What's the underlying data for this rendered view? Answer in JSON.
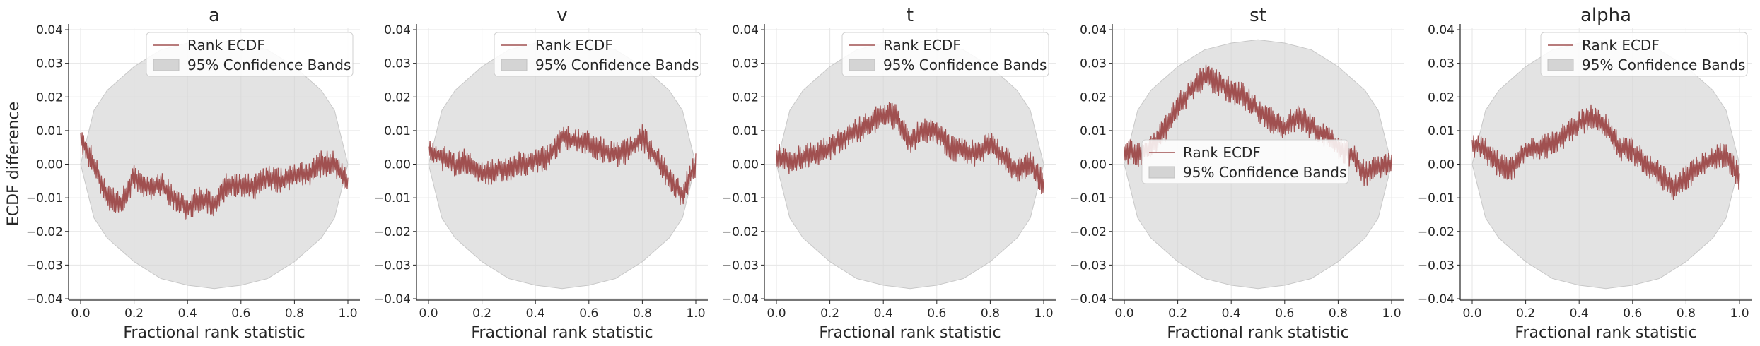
{
  "figure": {
    "ylabel": "ECDF difference",
    "xlabel": "Fractional rank statistic"
  },
  "chart_data": [
    {
      "type": "line",
      "title": "a",
      "xlabel": "Fractional rank statistic",
      "ylabel": "ECDF difference",
      "xlim": [
        0.0,
        1.0
      ],
      "ylim": [
        -0.04,
        0.04
      ],
      "xticks": [
        "0.0",
        "0.2",
        "0.4",
        "0.6",
        "0.8",
        "1.0"
      ],
      "yticks": [
        "-0.04",
        "-0.03",
        "-0.02",
        "-0.01",
        "0.00",
        "0.01",
        "0.02",
        "0.03",
        "0.04"
      ],
      "grid": true,
      "legend_position": "upper-center",
      "series": [
        {
          "name": "Rank ECDF",
          "color": "#a05050",
          "x": [
            0.0,
            0.05,
            0.1,
            0.15,
            0.2,
            0.25,
            0.3,
            0.35,
            0.4,
            0.45,
            0.5,
            0.55,
            0.6,
            0.65,
            0.7,
            0.75,
            0.8,
            0.85,
            0.9,
            0.95,
            1.0
          ],
          "y": [
            0.008,
            0.0,
            -0.01,
            -0.012,
            -0.004,
            -0.007,
            -0.006,
            -0.01,
            -0.013,
            -0.01,
            -0.012,
            -0.006,
            -0.006,
            -0.007,
            -0.004,
            -0.005,
            -0.003,
            -0.003,
            0.0,
            0.0,
            -0.006
          ],
          "noise_amplitude": 0.004
        },
        {
          "name": "95% Confidence Bands",
          "color": "#d4d4d4",
          "type": "band",
          "x": [
            0.0,
            0.05,
            0.1,
            0.2,
            0.3,
            0.4,
            0.5,
            0.6,
            0.7,
            0.8,
            0.9,
            0.95,
            1.0
          ],
          "upper": [
            0.0,
            0.016,
            0.022,
            0.029,
            0.034,
            0.036,
            0.037,
            0.036,
            0.034,
            0.029,
            0.022,
            0.016,
            0.0
          ],
          "lower": [
            0.0,
            -0.016,
            -0.022,
            -0.029,
            -0.034,
            -0.036,
            -0.037,
            -0.036,
            -0.034,
            -0.029,
            -0.022,
            -0.016,
            0.0
          ]
        }
      ]
    },
    {
      "type": "line",
      "title": "v",
      "xlabel": "Fractional rank statistic",
      "ylabel": "",
      "xlim": [
        0.0,
        1.0
      ],
      "ylim": [
        -0.04,
        0.04
      ],
      "xticks": [
        "0.0",
        "0.2",
        "0.4",
        "0.6",
        "0.8",
        "1.0"
      ],
      "yticks": [
        "-0.04",
        "-0.03",
        "-0.02",
        "-0.01",
        "0.00",
        "0.01",
        "0.02",
        "0.03",
        "0.04"
      ],
      "grid": true,
      "legend_position": "upper-center",
      "series": [
        {
          "name": "Rank ECDF",
          "color": "#a05050",
          "x": [
            0.0,
            0.05,
            0.1,
            0.15,
            0.2,
            0.25,
            0.3,
            0.35,
            0.4,
            0.45,
            0.5,
            0.55,
            0.6,
            0.65,
            0.7,
            0.75,
            0.8,
            0.85,
            0.9,
            0.95,
            1.0
          ],
          "y": [
            0.004,
            0.002,
            0.0,
            0.001,
            -0.003,
            -0.002,
            -0.001,
            0.0,
            0.001,
            0.002,
            0.008,
            0.007,
            0.006,
            0.004,
            0.003,
            0.004,
            0.008,
            0.002,
            -0.004,
            -0.009,
            0.0
          ],
          "noise_amplitude": 0.004
        },
        {
          "name": "95% Confidence Bands",
          "color": "#d4d4d4",
          "type": "band",
          "x": [
            0.0,
            0.05,
            0.1,
            0.2,
            0.3,
            0.4,
            0.5,
            0.6,
            0.7,
            0.8,
            0.9,
            0.95,
            1.0
          ],
          "upper": [
            0.0,
            0.016,
            0.022,
            0.029,
            0.034,
            0.036,
            0.037,
            0.036,
            0.034,
            0.029,
            0.022,
            0.016,
            0.0
          ],
          "lower": [
            0.0,
            -0.016,
            -0.022,
            -0.029,
            -0.034,
            -0.036,
            -0.037,
            -0.036,
            -0.034,
            -0.029,
            -0.022,
            -0.016,
            0.0
          ]
        }
      ]
    },
    {
      "type": "line",
      "title": "t",
      "xlabel": "Fractional rank statistic",
      "ylabel": "",
      "xlim": [
        0.0,
        1.0
      ],
      "ylim": [
        -0.04,
        0.04
      ],
      "xticks": [
        "0.0",
        "0.2",
        "0.4",
        "0.6",
        "0.8",
        "1.0"
      ],
      "yticks": [
        "-0.04",
        "-0.03",
        "-0.02",
        "-0.01",
        "0.00",
        "0.01",
        "0.02",
        "0.03",
        "0.04"
      ],
      "grid": true,
      "legend_position": "upper-center",
      "series": [
        {
          "name": "Rank ECDF",
          "color": "#a05050",
          "x": [
            0.0,
            0.05,
            0.1,
            0.15,
            0.2,
            0.25,
            0.3,
            0.35,
            0.4,
            0.45,
            0.5,
            0.55,
            0.6,
            0.65,
            0.7,
            0.75,
            0.8,
            0.85,
            0.9,
            0.95,
            1.0
          ],
          "y": [
            0.003,
            0.001,
            0.002,
            0.003,
            0.005,
            0.008,
            0.01,
            0.012,
            0.015,
            0.014,
            0.007,
            0.01,
            0.01,
            0.005,
            0.004,
            0.003,
            0.006,
            0.002,
            -0.002,
            0.0,
            -0.006
          ],
          "noise_amplitude": 0.004
        },
        {
          "name": "95% Confidence Bands",
          "color": "#d4d4d4",
          "type": "band",
          "x": [
            0.0,
            0.05,
            0.1,
            0.2,
            0.3,
            0.4,
            0.5,
            0.6,
            0.7,
            0.8,
            0.9,
            0.95,
            1.0
          ],
          "upper": [
            0.0,
            0.016,
            0.022,
            0.029,
            0.034,
            0.036,
            0.037,
            0.036,
            0.034,
            0.029,
            0.022,
            0.016,
            0.0
          ],
          "lower": [
            0.0,
            -0.016,
            -0.022,
            -0.029,
            -0.034,
            -0.036,
            -0.037,
            -0.036,
            -0.034,
            -0.029,
            -0.022,
            -0.016,
            0.0
          ]
        }
      ]
    },
    {
      "type": "line",
      "title": "st",
      "xlabel": "Fractional rank statistic",
      "ylabel": "",
      "xlim": [
        0.0,
        1.0
      ],
      "ylim": [
        -0.04,
        0.04
      ],
      "xticks": [
        "0.0",
        "0.2",
        "0.4",
        "0.6",
        "0.8",
        "1.0"
      ],
      "yticks": [
        "-0.04",
        "-0.03",
        "-0.02",
        "-0.01",
        "0.00",
        "0.01",
        "0.02",
        "0.03",
        "0.04"
      ],
      "grid": true,
      "legend_position": "center",
      "series": [
        {
          "name": "Rank ECDF",
          "color": "#a05050",
          "x": [
            0.0,
            0.05,
            0.1,
            0.15,
            0.2,
            0.25,
            0.3,
            0.35,
            0.4,
            0.45,
            0.5,
            0.55,
            0.6,
            0.65,
            0.7,
            0.75,
            0.8,
            0.85,
            0.9,
            0.95,
            1.0
          ],
          "y": [
            0.004,
            0.003,
            0.005,
            0.01,
            0.017,
            0.022,
            0.026,
            0.024,
            0.022,
            0.02,
            0.016,
            0.013,
            0.011,
            0.014,
            0.011,
            0.009,
            0.005,
            0.003,
            -0.003,
            -0.001,
            0.0
          ],
          "noise_amplitude": 0.004
        },
        {
          "name": "95% Confidence Bands",
          "color": "#d4d4d4",
          "type": "band",
          "x": [
            0.0,
            0.05,
            0.1,
            0.2,
            0.3,
            0.4,
            0.5,
            0.6,
            0.7,
            0.8,
            0.9,
            0.95,
            1.0
          ],
          "upper": [
            0.0,
            0.016,
            0.022,
            0.029,
            0.034,
            0.036,
            0.037,
            0.036,
            0.034,
            0.029,
            0.022,
            0.016,
            0.0
          ],
          "lower": [
            0.0,
            -0.016,
            -0.022,
            -0.029,
            -0.034,
            -0.036,
            -0.037,
            -0.036,
            -0.034,
            -0.029,
            -0.022,
            -0.016,
            0.0
          ]
        }
      ]
    },
    {
      "type": "line",
      "title": "alpha",
      "xlabel": "Fractional rank statistic",
      "ylabel": "",
      "xlim": [
        0.0,
        1.0
      ],
      "ylim": [
        -0.04,
        0.04
      ],
      "xticks": [
        "0.0",
        "0.2",
        "0.4",
        "0.6",
        "0.8",
        "1.0"
      ],
      "yticks": [
        "-0.04",
        "-0.03",
        "-0.02",
        "-0.01",
        "0.00",
        "0.01",
        "0.02",
        "0.03",
        "0.04"
      ],
      "grid": true,
      "legend_position": "upper-right",
      "series": [
        {
          "name": "Rank ECDF",
          "color": "#a05050",
          "x": [
            0.0,
            0.05,
            0.1,
            0.15,
            0.2,
            0.25,
            0.3,
            0.35,
            0.4,
            0.45,
            0.5,
            0.55,
            0.6,
            0.65,
            0.7,
            0.75,
            0.8,
            0.85,
            0.9,
            0.95,
            1.0
          ],
          "y": [
            0.006,
            0.004,
            0.0,
            -0.001,
            0.004,
            0.005,
            0.006,
            0.009,
            0.012,
            0.014,
            0.011,
            0.005,
            0.004,
            0.0,
            -0.003,
            -0.007,
            -0.004,
            -0.001,
            0.002,
            0.003,
            -0.004
          ],
          "noise_amplitude": 0.004
        },
        {
          "name": "95% Confidence Bands",
          "color": "#d4d4d4",
          "type": "band",
          "x": [
            0.0,
            0.05,
            0.1,
            0.2,
            0.3,
            0.4,
            0.5,
            0.6,
            0.7,
            0.8,
            0.9,
            0.95,
            1.0
          ],
          "upper": [
            0.0,
            0.016,
            0.022,
            0.029,
            0.034,
            0.036,
            0.037,
            0.036,
            0.034,
            0.029,
            0.022,
            0.016,
            0.0
          ],
          "lower": [
            0.0,
            -0.016,
            -0.022,
            -0.029,
            -0.034,
            -0.036,
            -0.037,
            -0.036,
            -0.034,
            -0.029,
            -0.022,
            -0.016,
            0.0
          ]
        }
      ]
    }
  ]
}
